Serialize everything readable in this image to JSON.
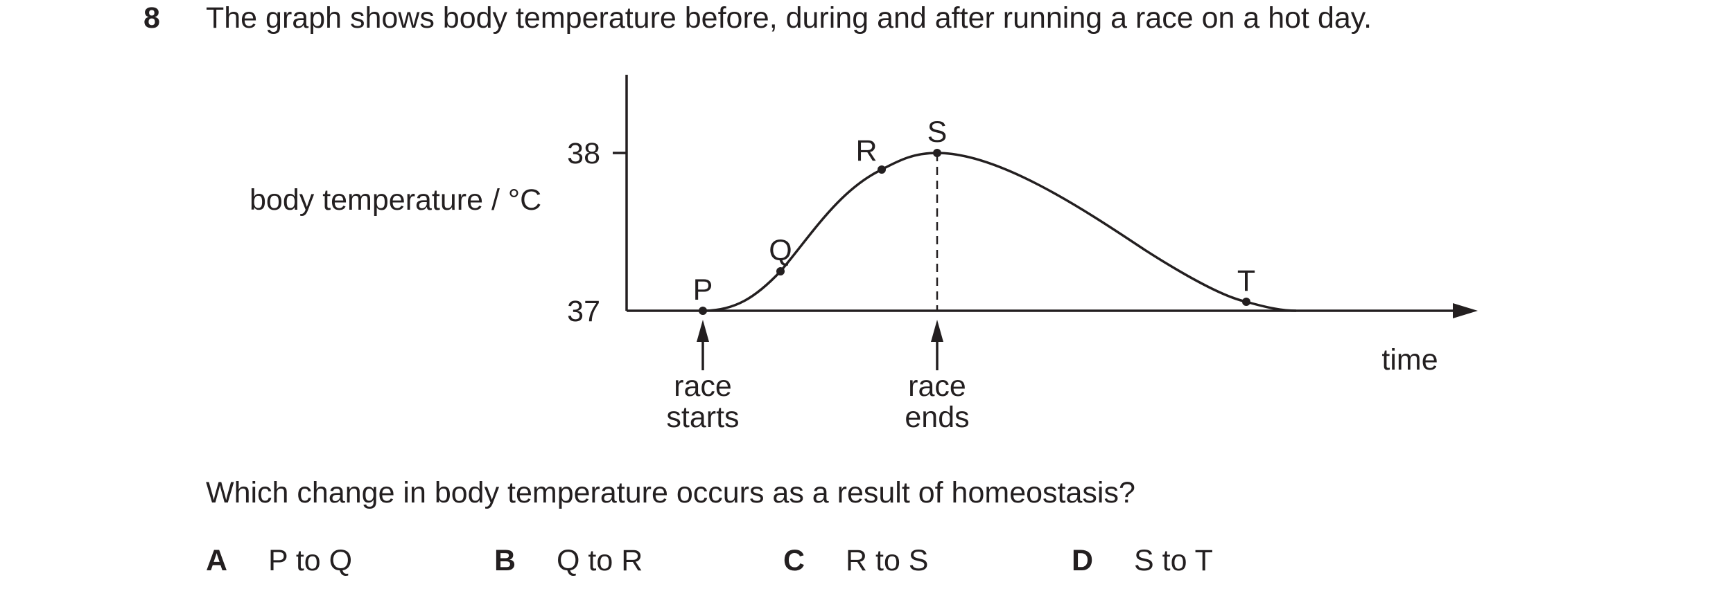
{
  "question": {
    "number": "8",
    "stem": "The graph shows body temperature before, during and after running a race on a hot day.",
    "prompt": "Which change in body temperature occurs as a result of homeostasis?"
  },
  "options": [
    {
      "letter": "A",
      "text": "P to Q"
    },
    {
      "letter": "B",
      "text": "Q to R"
    },
    {
      "letter": "C",
      "text": "R to S"
    },
    {
      "letter": "D",
      "text": "S to T"
    }
  ],
  "chart_data": {
    "type": "line",
    "title": "",
    "ylabel": "body temperature / °C",
    "xlabel": "time",
    "ylim": [
      37,
      38
    ],
    "yticks": [
      "37",
      "38"
    ],
    "points": [
      {
        "label": "P",
        "y": 37.0
      },
      {
        "label": "Q",
        "y": 37.25
      },
      {
        "label": "R",
        "y": 37.9
      },
      {
        "label": "S",
        "y": 38.0
      },
      {
        "label": "T",
        "y": 37.05
      }
    ],
    "annotations": [
      {
        "text": [
          "race",
          "starts"
        ],
        "at_point": "P"
      },
      {
        "text": [
          "race",
          "ends"
        ],
        "at_point": "S"
      }
    ],
    "grid": false
  }
}
